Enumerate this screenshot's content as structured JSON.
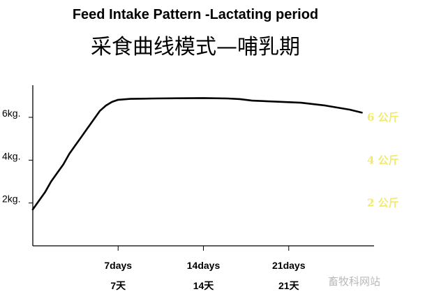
{
  "header": {
    "title_en": "Feed Intake Pattern -Lactating period",
    "title_zh": "采食曲线模式—哺乳期"
  },
  "watermark": "畜牧科网站",
  "chart_data": {
    "type": "line",
    "title": "Feed Intake Pattern -Lactating period",
    "subtitle": "采食曲线模式—哺乳期",
    "y_ticks": [
      {
        "value": 6,
        "label": "6kg."
      },
      {
        "value": 4,
        "label": "4kg."
      },
      {
        "value": 2,
        "label": "2kg."
      }
    ],
    "y_ticks_right": [
      {
        "value": 6,
        "label": "6 公斤"
      },
      {
        "value": 4,
        "label": "4 公斤"
      },
      {
        "value": 2,
        "label": "2 公斤"
      }
    ],
    "x_ticks": [
      {
        "value": 7,
        "label": "7days",
        "label_zh": "7天"
      },
      {
        "value": 14,
        "label": "14days",
        "label_zh": "14天"
      },
      {
        "value": 21,
        "label": "21days",
        "label_zh": "21天"
      }
    ],
    "xlim": [
      0,
      28
    ],
    "ylim": [
      0,
      7.5
    ],
    "grid": false,
    "legend": "none",
    "series": [
      {
        "color": "#000000",
        "x": [
          0,
          0.5,
          1,
          1.5,
          2,
          2.5,
          3,
          3.5,
          4,
          4.5,
          5,
          5.5,
          6,
          6.5,
          7,
          8,
          9,
          10,
          12,
          14,
          16,
          17,
          18,
          20,
          22,
          24,
          26,
          27
        ],
        "y": [
          1.7,
          2.1,
          2.5,
          3.0,
          3.4,
          3.8,
          4.3,
          4.7,
          5.1,
          5.5,
          5.9,
          6.3,
          6.55,
          6.72,
          6.82,
          6.86,
          6.87,
          6.88,
          6.89,
          6.9,
          6.88,
          6.85,
          6.78,
          6.73,
          6.68,
          6.55,
          6.36,
          6.22
        ]
      }
    ]
  }
}
